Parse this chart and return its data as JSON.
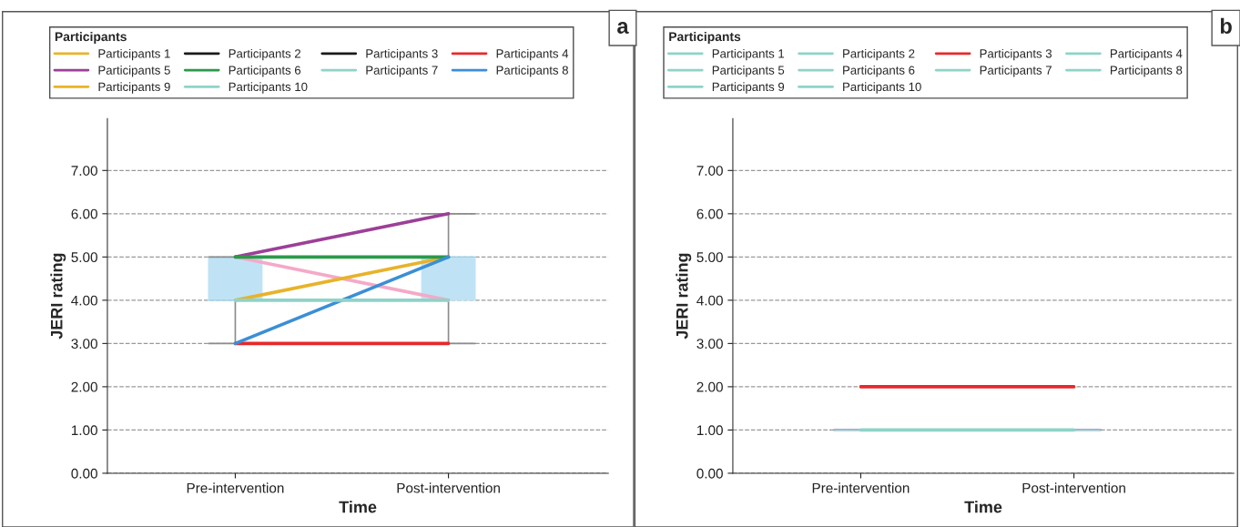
{
  "chart_data": [
    {
      "type": "line",
      "xlabel": "Time",
      "ylabel": "JERI rating",
      "legend_title": "Participants",
      "annotations": [
        "a"
      ],
      "categories": [
        "Pre-intervention",
        "Post-intervention"
      ],
      "ylim": [
        0,
        8.2
      ],
      "yticks": [
        {
          "value": 0,
          "label": "0.00"
        },
        {
          "value": 1,
          "label": "1.00"
        },
        {
          "value": 2,
          "label": "2.00"
        },
        {
          "value": 3,
          "label": "3.00"
        },
        {
          "value": 4,
          "label": "4.00"
        },
        {
          "value": 5,
          "label": "5.00"
        },
        {
          "value": 6,
          "label": "6.00"
        },
        {
          "value": 7,
          "label": "7.00"
        }
      ],
      "grid": "y",
      "legend": "top",
      "line_style": "solid",
      "marker": "none",
      "series": [
        {
          "type": "box",
          "color": "#bfe3f5",
          "boxes": [
            {
              "low": 3,
              "q1": 4,
              "median": 4,
              "q3": 5,
              "high": 5
            },
            {
              "low": 3,
              "q1": 4,
              "median": 5,
              "q3": 5,
              "high": 6
            }
          ]
        },
        {
          "color": "#f4a9c8",
          "values": [
            5,
            4
          ]
        },
        {
          "name": "Participants 1",
          "color": "#e8b32a",
          "values": [
            4,
            5
          ]
        },
        {
          "name": "Participants 2",
          "color": "#1a1a1a",
          "values": [
            null,
            null
          ]
        },
        {
          "name": "Participants 3",
          "color": "#1a1a1a",
          "values": [
            null,
            null
          ]
        },
        {
          "name": "Participants 4",
          "color": "#e8282b",
          "values": [
            3,
            3
          ]
        },
        {
          "name": "Participants 5",
          "color": "#9c3f98",
          "values": [
            5,
            6
          ]
        },
        {
          "name": "Participants 6",
          "color": "#2a9a4a",
          "values": [
            5,
            5
          ]
        },
        {
          "name": "Participants 7",
          "color": "#8fd3c8",
          "values": [
            null,
            null
          ]
        },
        {
          "name": "Participants 8",
          "color": "#3a8fd6",
          "values": [
            3,
            5
          ]
        },
        {
          "name": "Participants 9",
          "color": "#e8b32a",
          "values": [
            null,
            null
          ]
        },
        {
          "name": "Participants 10",
          "color": "#8fd3c8",
          "values": [
            4,
            4
          ]
        }
      ]
    },
    {
      "type": "line",
      "xlabel": "Time",
      "ylabel": "JERI rating",
      "legend_title": "Participants",
      "annotations": [
        "b"
      ],
      "categories": [
        "Pre-intervention",
        "Post-intervention"
      ],
      "ylim": [
        0,
        8.2
      ],
      "yticks": [
        {
          "value": 0,
          "label": "0.00"
        },
        {
          "value": 1,
          "label": "1.00"
        },
        {
          "value": 2,
          "label": "2.00"
        },
        {
          "value": 3,
          "label": "3.00"
        },
        {
          "value": 4,
          "label": "4.00"
        },
        {
          "value": 5,
          "label": "5.00"
        },
        {
          "value": 6,
          "label": "6.00"
        },
        {
          "value": 7,
          "label": "7.00"
        }
      ],
      "grid": "y",
      "legend": "top",
      "line_style": "solid",
      "marker": "none",
      "series": [
        {
          "type": "box",
          "color": "#bfe3f5",
          "boxes": [
            {
              "low": 1,
              "q1": 1,
              "median": 1,
              "q3": 1,
              "high": 1
            },
            {
              "low": 1,
              "q1": 1,
              "median": 1,
              "q3": 1,
              "high": 1
            }
          ]
        },
        {
          "name": "Participants 1",
          "color": "#8fd3c8",
          "values": [
            null,
            null
          ]
        },
        {
          "name": "Participants 2",
          "color": "#8fd3c8",
          "values": [
            null,
            null
          ]
        },
        {
          "name": "Participants 3",
          "color": "#e8282b",
          "values": [
            2,
            2
          ]
        },
        {
          "name": "Participants 4",
          "color": "#8fd3c8",
          "values": [
            null,
            null
          ]
        },
        {
          "name": "Participants 5",
          "color": "#8fd3c8",
          "values": [
            null,
            null
          ]
        },
        {
          "name": "Participants 6",
          "color": "#8fd3c8",
          "values": [
            null,
            null
          ]
        },
        {
          "name": "Participants 7",
          "color": "#8fd3c8",
          "values": [
            null,
            null
          ]
        },
        {
          "name": "Participants 8",
          "color": "#8fd3c8",
          "values": [
            null,
            null
          ]
        },
        {
          "name": "Participants 9",
          "color": "#8fd3c8",
          "values": [
            null,
            null
          ]
        },
        {
          "name": "Participants 10",
          "color": "#8fd3c8",
          "values": [
            1,
            1
          ]
        }
      ]
    }
  ]
}
